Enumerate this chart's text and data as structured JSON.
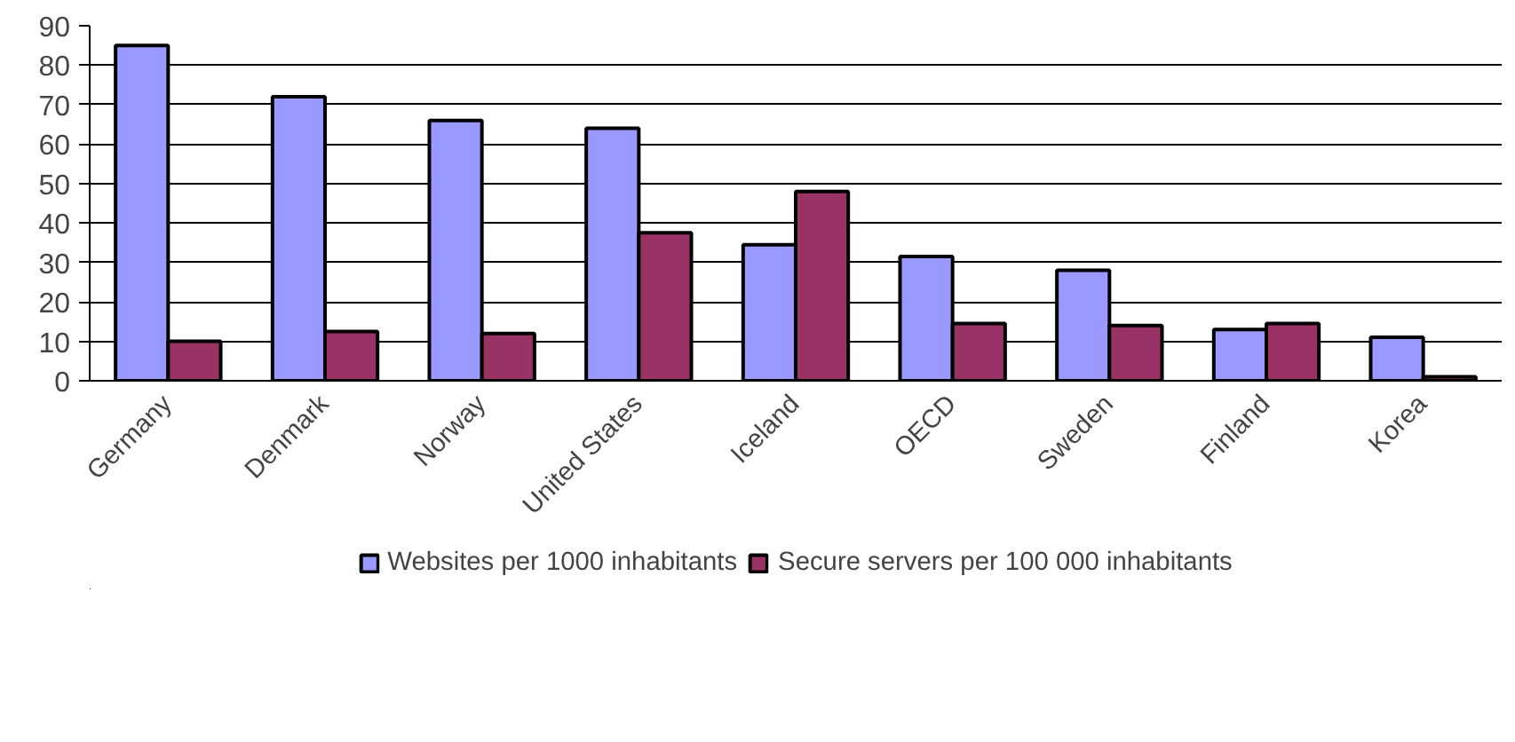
{
  "chart_data": {
    "type": "bar",
    "categories": [
      "Germany",
      "Denmark",
      "Norway",
      "United States",
      "Iceland",
      "OECD",
      "Sweden",
      "Finland",
      "Korea"
    ],
    "series": [
      {
        "name": "Websites per 1000 inhabitants",
        "color": "#9999ff",
        "values": [
          85,
          72,
          66,
          64,
          34.5,
          31.5,
          28,
          13,
          11
        ]
      },
      {
        "name": "Secure servers per 100 000 inhabitants",
        "color": "#993366",
        "values": [
          10,
          12.5,
          12,
          37.5,
          48,
          14.5,
          14,
          14.5,
          1
        ]
      }
    ],
    "ylim": [
      0,
      90
    ],
    "yticks": [
      0,
      10,
      20,
      30,
      40,
      50,
      60,
      70,
      80,
      90
    ],
    "grid": "y",
    "legend": "bottom"
  }
}
